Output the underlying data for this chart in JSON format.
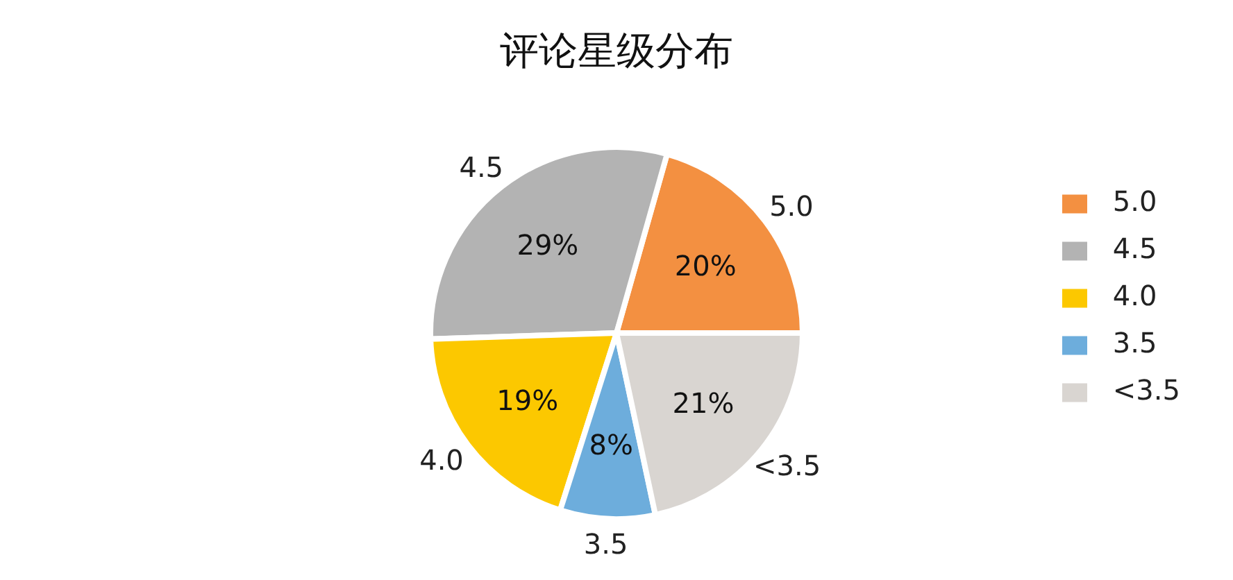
{
  "chart_data": {
    "type": "pie",
    "title": "评论星级分布",
    "categories": [
      "5.0",
      "4.5",
      "4.0",
      "3.5",
      "<3.5"
    ],
    "values": [
      20,
      29,
      19,
      8,
      21
    ],
    "value_labels": [
      "20%",
      "29%",
      "19%",
      "8%",
      "21%"
    ],
    "colors": [
      "#f39041",
      "#b3b3b3",
      "#fcc800",
      "#6daddc",
      "#d9d5d1"
    ],
    "legend": "right"
  }
}
